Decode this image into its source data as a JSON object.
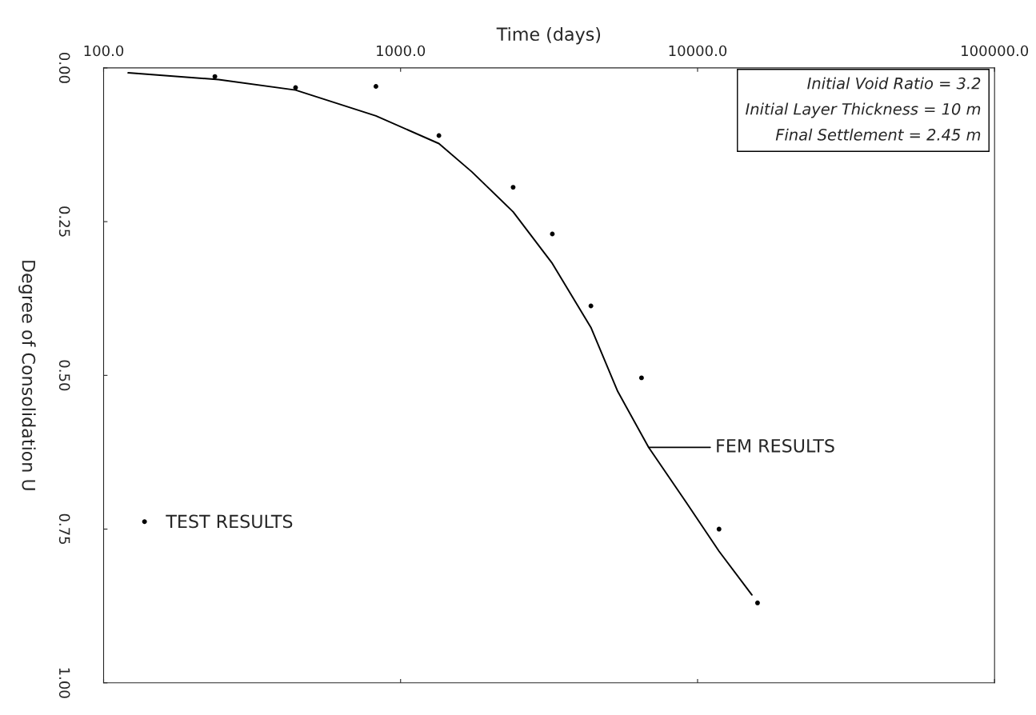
{
  "chart_data": {
    "type": "scatter",
    "xlabel": "Time (days)",
    "ylabel": "Degree of Consolidation U",
    "log": "x",
    "xlim": [
      100,
      100000
    ],
    "xticks": [
      {
        "value": 100,
        "label": "100.0"
      },
      {
        "value": 1000,
        "label": "1000.0"
      },
      {
        "value": 10000,
        "label": "10000.0"
      },
      {
        "value": 100000,
        "label": "100000.0"
      }
    ],
    "ylim": [
      1.0,
      0.0
    ],
    "yticks": [
      {
        "value": 0,
        "label": "0.00"
      },
      {
        "value": 0.25,
        "label": "0.25"
      },
      {
        "value": 0.5,
        "label": "0.50"
      },
      {
        "value": 0.75,
        "label": "0.75"
      },
      {
        "value": 1.0,
        "label": "1.00"
      }
    ],
    "grid": false,
    "legend": "bottom left",
    "series": [
      {
        "name": "TEST RESULTS",
        "marker": "circle",
        "color": "#000000",
        "x": [
          237,
          443,
          826,
          1346,
          2393,
          3243,
          4374,
          6475,
          11810,
          15920
        ],
        "values": [
          0.014,
          0.032,
          0.03,
          0.11,
          0.194,
          0.27,
          0.387,
          0.504,
          0.75,
          0.87
        ]
      },
      {
        "name": "FEM RESULTS",
        "type": "line",
        "marker": "none",
        "line_style": "solid",
        "color": "#000000",
        "x": [
          121,
          244,
          443,
          826,
          1346,
          1738,
          2393,
          3243,
          4374,
          5383,
          6840,
          9200,
          11810,
          15240
        ],
        "values": [
          0.008,
          0.019,
          0.036,
          0.078,
          0.123,
          0.169,
          0.234,
          0.318,
          0.422,
          0.526,
          0.617,
          0.708,
          0.786,
          0.857
        ]
      }
    ],
    "annotations": [
      "Initial Void Ratio = 3.2",
      "Initial Layer Thickness = 10 m",
      "Final Settlement = 2.45 m"
    ]
  }
}
